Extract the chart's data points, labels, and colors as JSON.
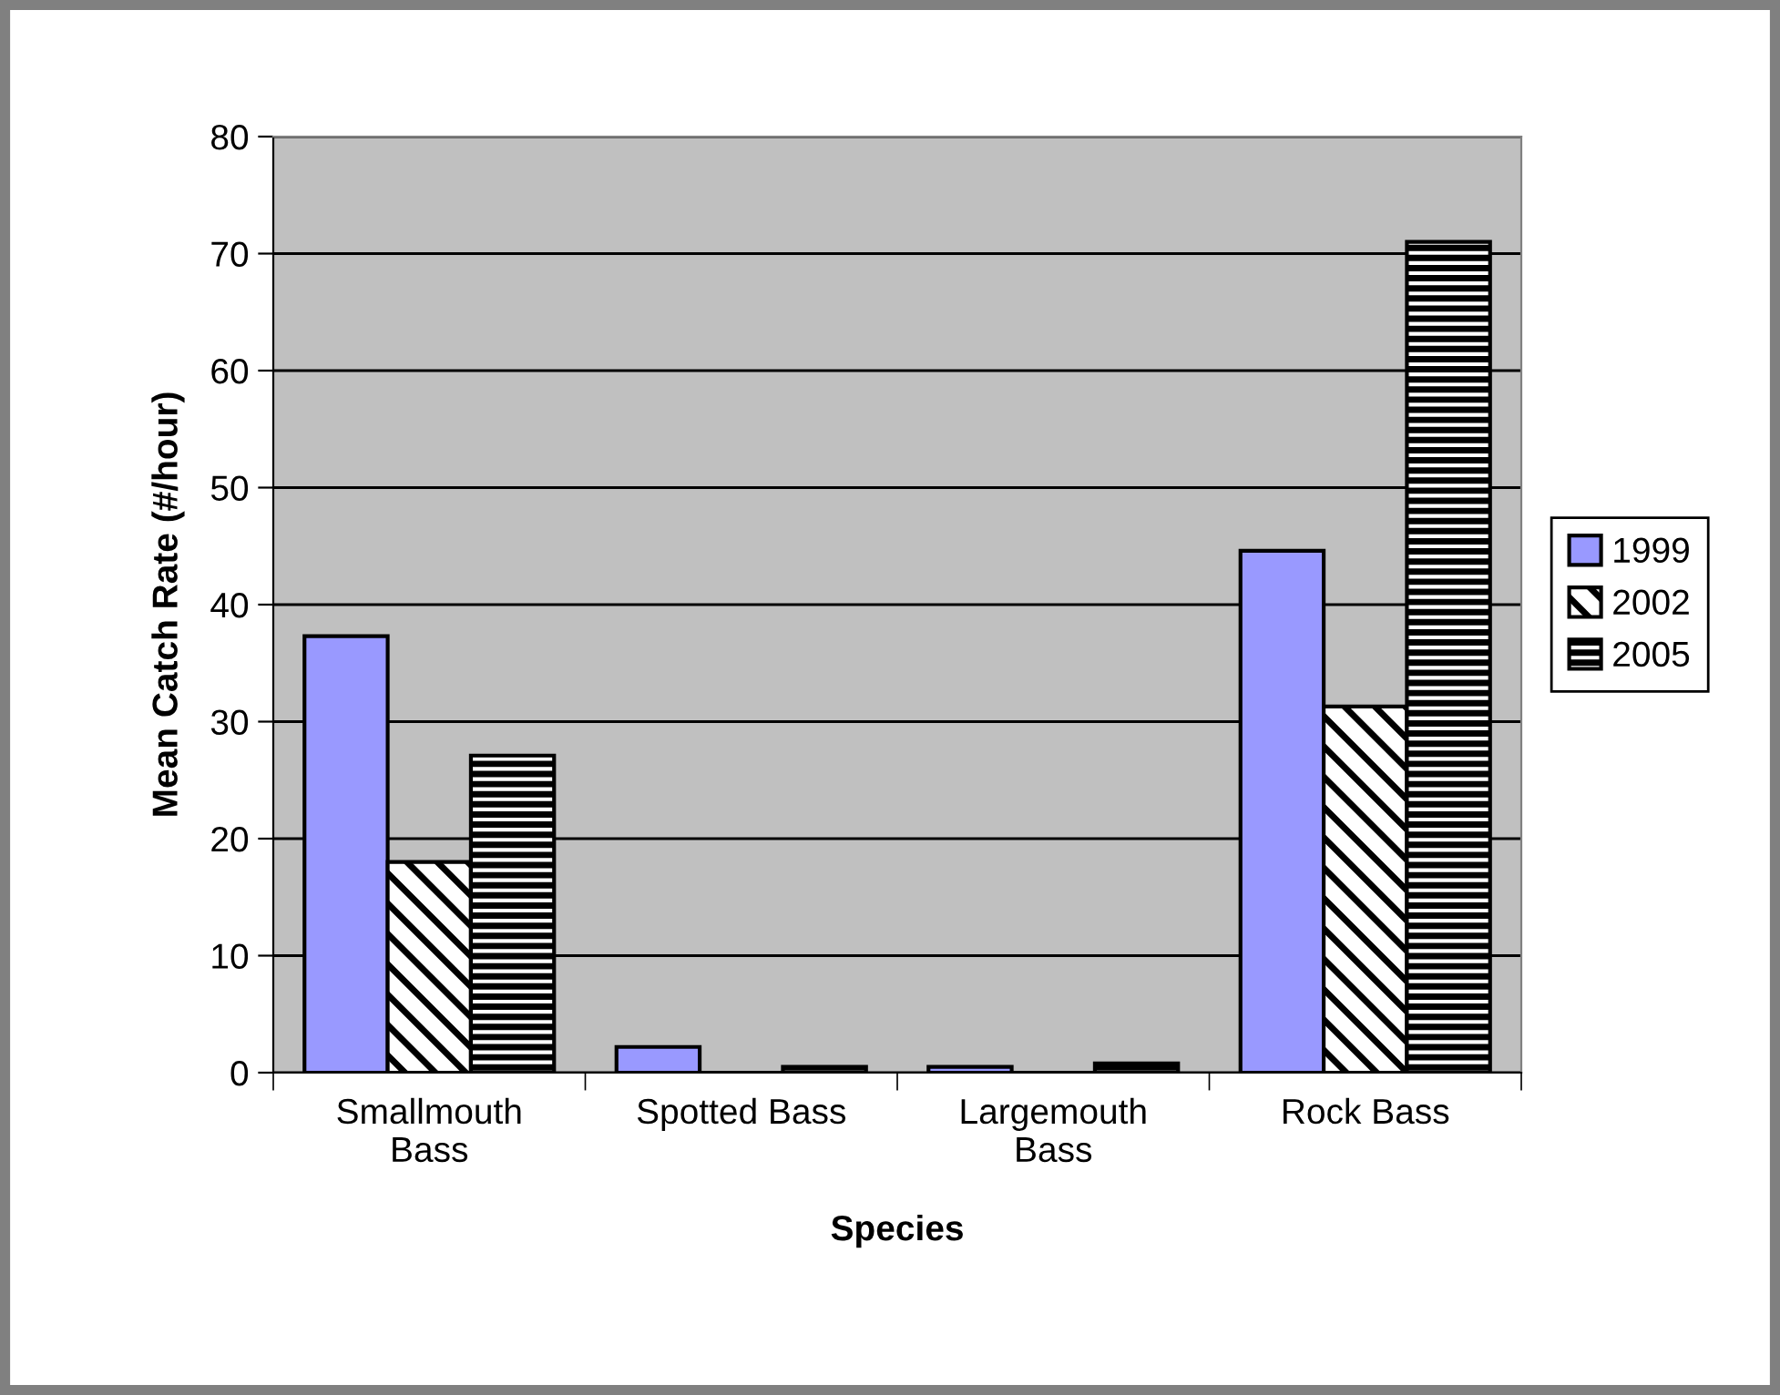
{
  "chart_data": {
    "type": "bar",
    "xlabel": "Species",
    "ylabel": "Mean Catch Rate (#/hour)",
    "categories": [
      "Smallmouth\nBass",
      "Spotted Bass",
      "Largemouth\nBass",
      "Rock Bass"
    ],
    "series": [
      {
        "name": "1999",
        "color": "#9999ff",
        "values": [
          37.3,
          2.2,
          0.5,
          44.6
        ]
      },
      {
        "name": "2002",
        "color": "#000000",
        "values": [
          18,
          0,
          0,
          31.3
        ]
      },
      {
        "name": "2005",
        "color": "#000000",
        "values": [
          27.1,
          0.5,
          0.8,
          71.0
        ]
      }
    ],
    "ylim": [
      0,
      80
    ],
    "yticks": [
      0,
      10,
      20,
      30,
      40,
      50,
      60,
      70,
      80
    ],
    "grid": "y",
    "legend": "right"
  }
}
